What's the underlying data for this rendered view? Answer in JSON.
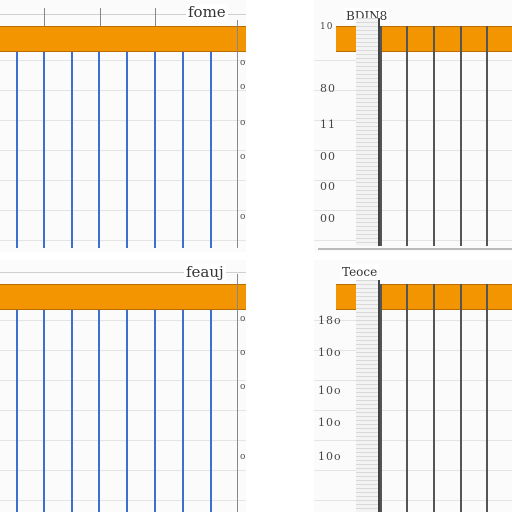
{
  "panels": [
    {
      "title": "fome",
      "left_labels": [],
      "right_marks": [
        "o",
        "o",
        "o",
        "o",
        "o"
      ]
    },
    {
      "title": "BDIN8",
      "left_labels": [
        "10",
        "80",
        "11",
        "00",
        "00",
        "00"
      ]
    },
    {
      "title": "feauj",
      "left_labels": [],
      "right_marks": [
        "o",
        "o",
        "o",
        "o"
      ]
    },
    {
      "title": "Teoce",
      "left_labels": [
        "18o",
        "10o",
        "10o",
        "10o",
        "10o"
      ]
    }
  ],
  "colors": {
    "header": "#f29500",
    "line": "#3d6fd0"
  }
}
